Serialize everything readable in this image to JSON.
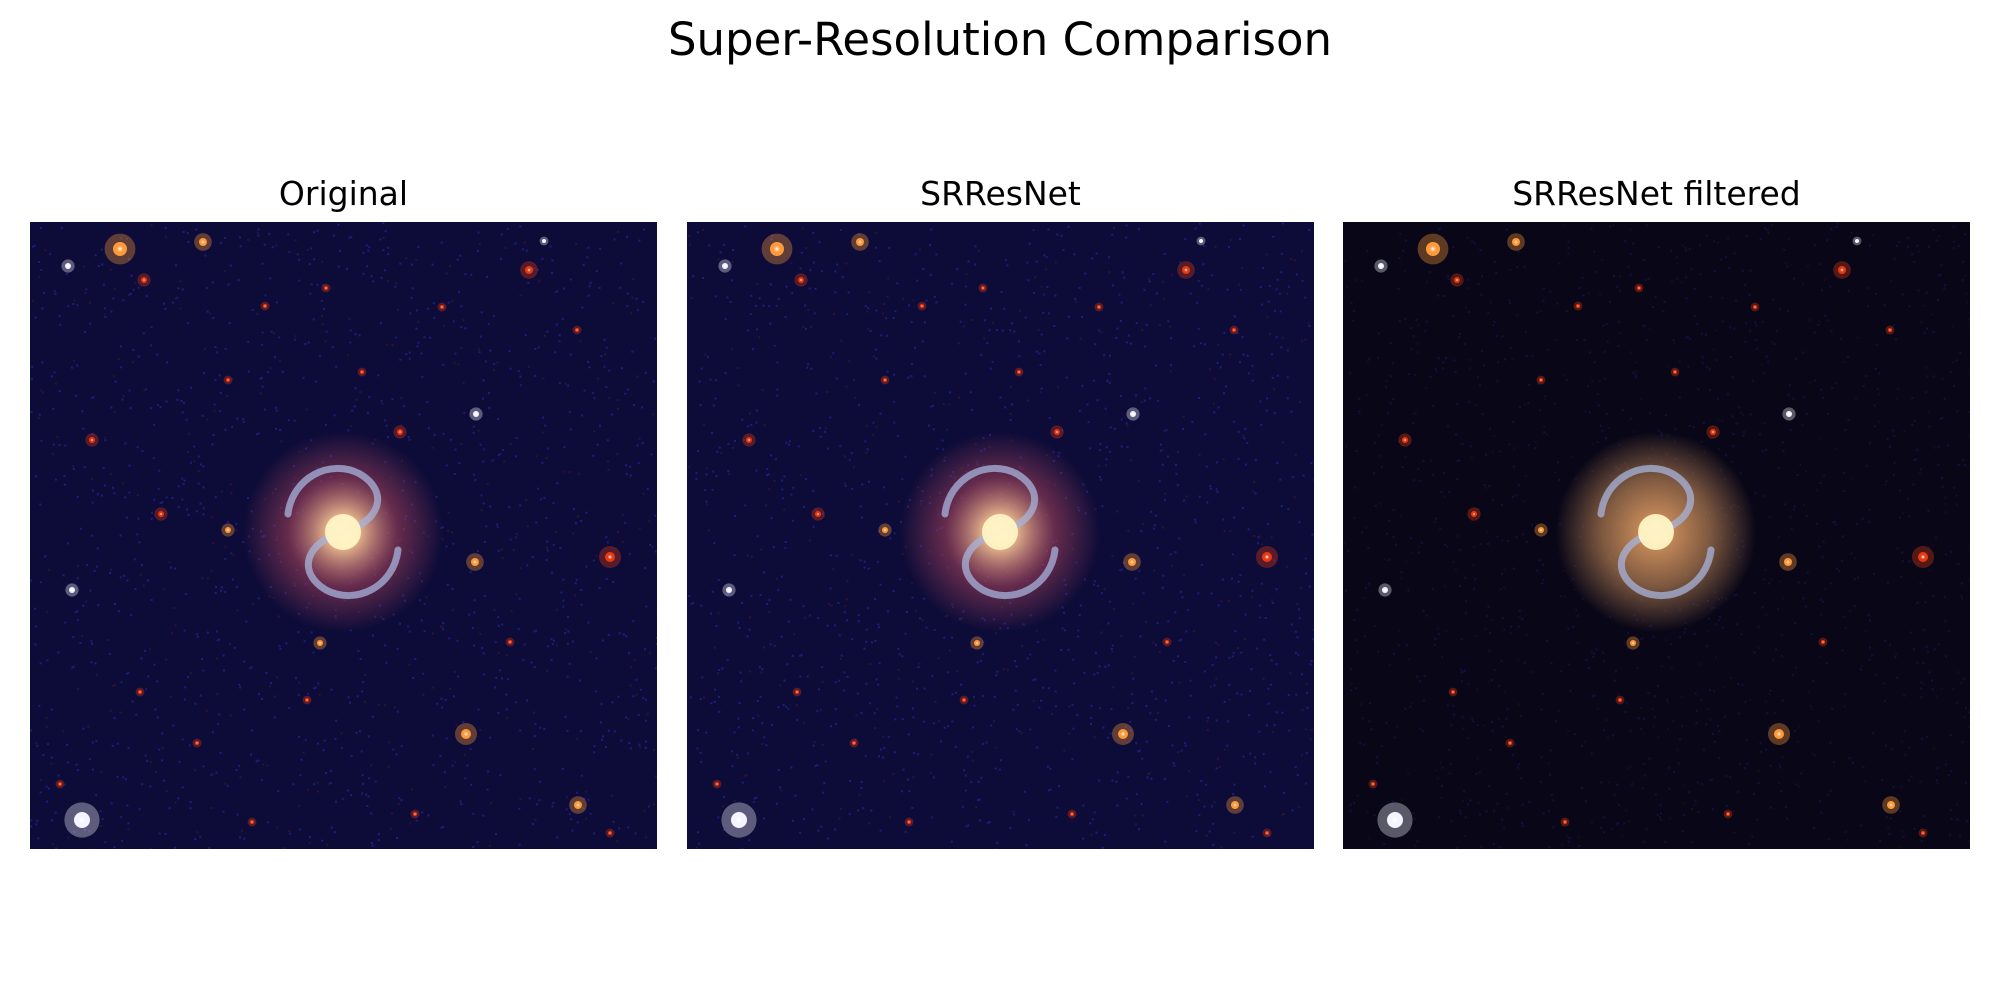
{
  "title": "Super-Resolution Comparison",
  "panels": [
    {
      "title": "Original",
      "variant": "original"
    },
    {
      "title": "SRResNet",
      "variant": "srresnet"
    },
    {
      "title": "SRResNet filtered",
      "variant": "filtered"
    }
  ],
  "colors": {
    "sky_original": "#0d0c38",
    "sky_filtered": "#090717",
    "noise": "#2a2ab8",
    "halo": "#a0405a",
    "halo_filtered": "#c88c5a",
    "arms": "#a8b4dc",
    "core": "#fff4c4",
    "star_red": "#e83a10",
    "star_orange": "#ff9a3a",
    "star_white": "#f4f4ff"
  }
}
